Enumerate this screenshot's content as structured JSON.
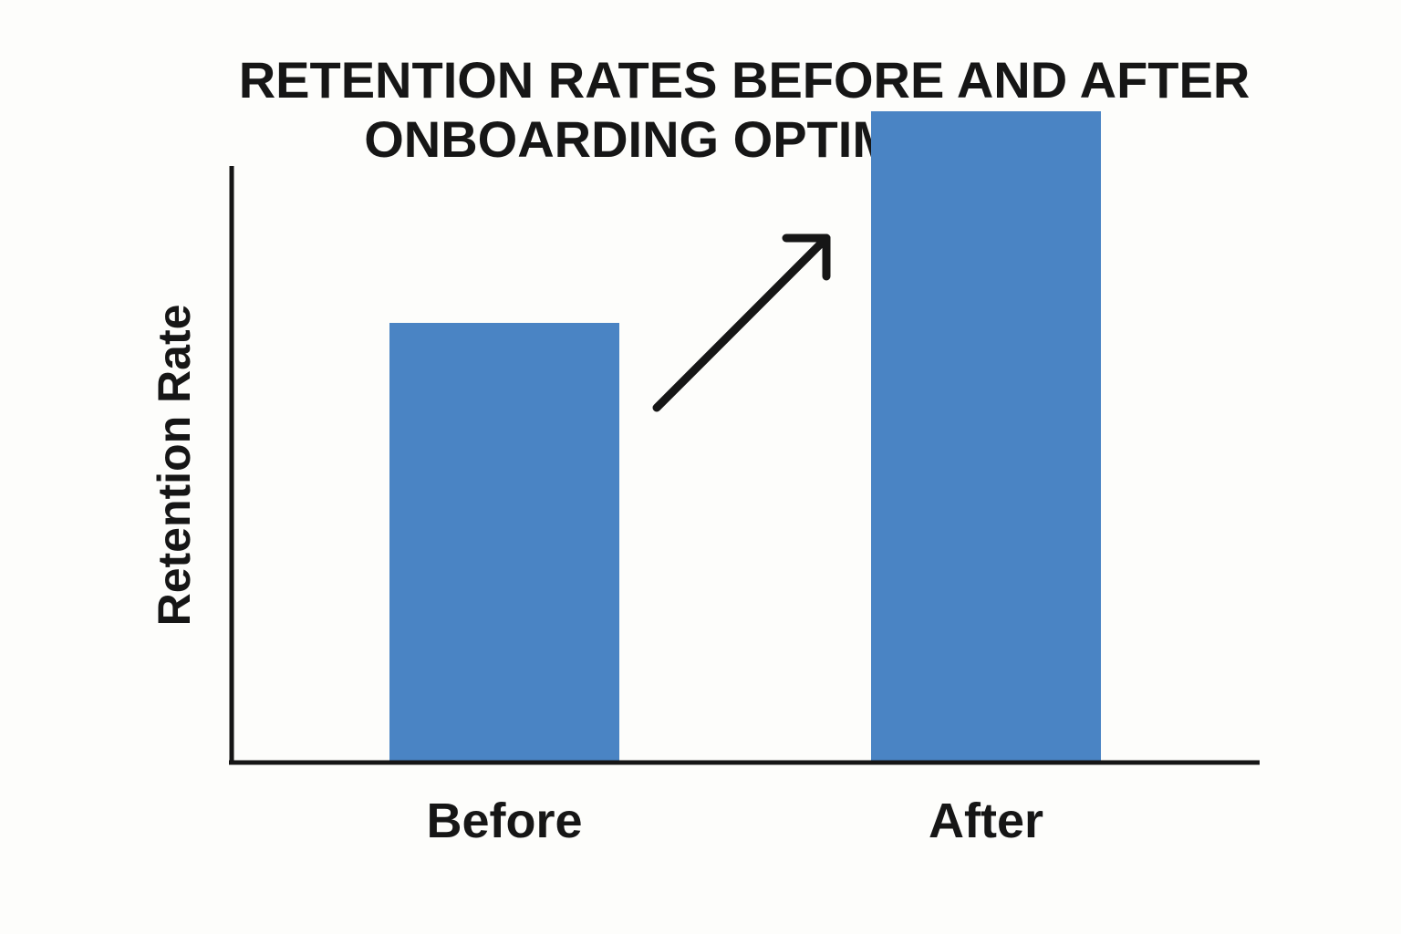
{
  "chart_data": {
    "type": "bar",
    "title": "RETENTION RATES BEFORE AND AFTER ONBOARDING OPTIMIZATION",
    "title_lines": [
      "RETENTION RATES BEFORE AND AFTER",
      "ONBOARDING OPTIMIZATION"
    ],
    "xlabel": "",
    "ylabel": "Retention Rate",
    "categories": [
      "Before",
      "After"
    ],
    "values": [
      60,
      89
    ],
    "ylim": [
      0,
      100
    ],
    "grid": false,
    "legend": "none",
    "bar_color": "#4a84c4",
    "annotation": "up-arrow"
  }
}
